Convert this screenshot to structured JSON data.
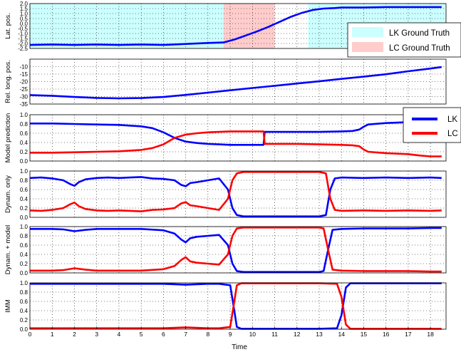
{
  "chart_data": {
    "type": "line",
    "xlabel": "Time",
    "xlim": [
      0,
      18.7
    ],
    "xticks": [
      0,
      1,
      2,
      3,
      4,
      5,
      6,
      7,
      8,
      9,
      10,
      11,
      12,
      13,
      14,
      15,
      16,
      17,
      18
    ],
    "colors": {
      "LK": "#0000ff",
      "LC": "#ff0000",
      "lk_region": "#ccffff",
      "lc_region": "#ffcccc"
    },
    "legend_regions": {
      "position": "top-right",
      "entries": [
        "LK Ground Truth",
        "LC Ground Truth"
      ]
    },
    "legend_lines": {
      "position": "top-right",
      "entries": [
        "LK",
        "LC"
      ]
    },
    "panels": [
      {
        "ylabel": "Lat. pos.",
        "ylim": [
          -2.5,
          2.0
        ],
        "yticks": [
          "2.0",
          "1.5",
          "1.0",
          "0.5",
          "0.0",
          "-0.5",
          "-1.0",
          "-1.5",
          "-2.0",
          "-2.5"
        ],
        "regions": [
          {
            "label": "LK Ground Truth",
            "x": [
              0,
              8.7
            ]
          },
          {
            "label": "LC Ground Truth",
            "x": [
              8.7,
              11.0
            ]
          },
          {
            "label": "LK Ground Truth",
            "x": [
              12.5,
              18.7
            ]
          }
        ],
        "series": [
          {
            "x": [
              0,
              1,
              2,
              3,
              4,
              5,
              6,
              7,
              8,
              8.7,
              9.2,
              9.7,
              10.2,
              10.7,
              11.2,
              11.7,
              12.2,
              12.7,
              13.2,
              13.7,
              14,
              15,
              16,
              17,
              18,
              18.5
            ],
            "y": [
              -2.15,
              -2.1,
              -2.15,
              -2.1,
              -2.15,
              -2.1,
              -2.15,
              -2.05,
              -1.95,
              -1.9,
              -1.6,
              -1.2,
              -0.8,
              -0.35,
              0.15,
              0.65,
              1.05,
              1.35,
              1.5,
              1.55,
              1.6,
              1.6,
              1.65,
              1.65,
              1.65,
              1.65
            ]
          }
        ]
      },
      {
        "ylabel": "Rel. long. pos.",
        "ylim": [
          -35,
          -5
        ],
        "yticks": [
          "-10",
          "-15",
          "-20",
          "-25",
          "-30",
          "-35"
        ],
        "series": [
          {
            "x": [
              0,
              1,
              2,
              3,
              4,
              5,
              6,
              7,
              8,
              9,
              10,
              11,
              12,
              13,
              14,
              15,
              16,
              17,
              18,
              18.5
            ],
            "y": [
              -29,
              -29.5,
              -30.3,
              -30.9,
              -31.2,
              -31,
              -30.3,
              -28.9,
              -27.4,
              -25.8,
              -24.3,
              -22.8,
              -21.3,
              -19.8,
              -18.2,
              -16.7,
              -15.1,
              -13.1,
              -11.3,
              -10.3
            ]
          }
        ]
      },
      {
        "ylabel": "Model prediction",
        "ylim": [
          0,
          1
        ],
        "yticks": [
          "1.0",
          "0.8",
          "0.6",
          "0.4",
          "0.2",
          "0.0"
        ],
        "series": [
          {
            "name": "LK",
            "x": [
              0,
              1,
              2,
              3,
              4,
              5,
              5.5,
              6,
              6.5,
              7,
              7.5,
              8,
              8.5,
              9,
              9.5,
              10,
              10.5,
              10.55,
              11,
              12,
              13,
              14,
              14.5,
              14.8,
              15,
              15.2,
              16,
              17,
              18,
              18.5
            ],
            "y": [
              0.81,
              0.81,
              0.8,
              0.79,
              0.78,
              0.75,
              0.71,
              0.62,
              0.5,
              0.42,
              0.39,
              0.37,
              0.36,
              0.35,
              0.35,
              0.35,
              0.35,
              0.63,
              0.63,
              0.63,
              0.63,
              0.64,
              0.65,
              0.68,
              0.74,
              0.79,
              0.82,
              0.84,
              0.9,
              0.9
            ]
          },
          {
            "name": "LC",
            "x": [
              0,
              1,
              2,
              3,
              4,
              5,
              5.5,
              6,
              6.5,
              7,
              7.5,
              8,
              8.5,
              9,
              9.5,
              10,
              10.5,
              10.55,
              11,
              12,
              13,
              14,
              14.5,
              14.8,
              15,
              15.2,
              16,
              17,
              17.5,
              18,
              18.5
            ],
            "y": [
              0.18,
              0.18,
              0.19,
              0.2,
              0.21,
              0.24,
              0.28,
              0.36,
              0.5,
              0.57,
              0.6,
              0.62,
              0.63,
              0.64,
              0.64,
              0.64,
              0.64,
              0.37,
              0.37,
              0.37,
              0.36,
              0.35,
              0.34,
              0.32,
              0.25,
              0.2,
              0.17,
              0.15,
              0.12,
              0.1,
              0.1
            ]
          }
        ]
      },
      {
        "ylabel": "Dynam. only",
        "ylim": [
          0,
          1
        ],
        "yticks": [
          "1.0",
          "0.8",
          "0.6",
          "0.4",
          "0.2",
          "0.0"
        ],
        "series": [
          {
            "name": "LK",
            "x": [
              0,
              0.5,
              1,
              1.5,
              1.8,
              2,
              2.2,
              2.5,
              3,
              3.5,
              4,
              4.5,
              5,
              5.5,
              6,
              6.5,
              6.8,
              7,
              7.2,
              7.5,
              8,
              8.5,
              8.9,
              9.1,
              9.3,
              9.6,
              10,
              11,
              12,
              13,
              13.3,
              13.5,
              13.7,
              14,
              15,
              16,
              17,
              18,
              18.5
            ],
            "y": [
              0.85,
              0.86,
              0.84,
              0.8,
              0.72,
              0.68,
              0.76,
              0.82,
              0.85,
              0.86,
              0.85,
              0.86,
              0.87,
              0.84,
              0.83,
              0.8,
              0.7,
              0.67,
              0.74,
              0.76,
              0.8,
              0.84,
              0.6,
              0.2,
              0.05,
              0.02,
              0.02,
              0.02,
              0.02,
              0.02,
              0.05,
              0.6,
              0.84,
              0.86,
              0.85,
              0.86,
              0.85,
              0.86,
              0.85
            ]
          },
          {
            "name": "LC",
            "x": [
              0,
              0.5,
              1,
              1.5,
              1.8,
              2,
              2.2,
              2.5,
              3,
              3.5,
              4,
              4.5,
              5,
              5.5,
              6,
              6.5,
              6.8,
              7,
              7.2,
              7.5,
              8,
              8.5,
              8.9,
              9.1,
              9.3,
              9.6,
              10,
              11,
              12,
              13,
              13.3,
              13.5,
              13.7,
              14,
              15,
              16,
              17,
              18,
              18.5
            ],
            "y": [
              0.15,
              0.14,
              0.16,
              0.2,
              0.28,
              0.32,
              0.24,
              0.18,
              0.15,
              0.14,
              0.15,
              0.14,
              0.13,
              0.16,
              0.17,
              0.2,
              0.3,
              0.33,
              0.26,
              0.24,
              0.2,
              0.16,
              0.4,
              0.8,
              0.95,
              0.98,
              0.98,
              0.98,
              0.98,
              0.98,
              0.95,
              0.4,
              0.16,
              0.14,
              0.15,
              0.14,
              0.15,
              0.14,
              0.15
            ]
          }
        ]
      },
      {
        "ylabel": "Dynam. + model",
        "ylim": [
          0,
          1
        ],
        "yticks": [
          "1.0",
          "0.8",
          "0.6",
          "0.4",
          "0.2",
          "0.0"
        ],
        "series": [
          {
            "name": "LK",
            "x": [
              0,
              1,
              1.5,
              2,
              2.5,
              3,
              4,
              5,
              6,
              6.5,
              6.8,
              7,
              7.2,
              7.5,
              8,
              8.5,
              8.9,
              9.1,
              9.3,
              9.6,
              10,
              11,
              12,
              13,
              13.2,
              13.4,
              13.6,
              14,
              15,
              16,
              17,
              18,
              18.5
            ],
            "y": [
              0.95,
              0.95,
              0.94,
              0.9,
              0.93,
              0.95,
              0.95,
              0.95,
              0.92,
              0.85,
              0.72,
              0.66,
              0.75,
              0.78,
              0.8,
              0.82,
              0.6,
              0.2,
              0.04,
              0.02,
              0.02,
              0.02,
              0.02,
              0.02,
              0.04,
              0.5,
              0.93,
              0.95,
              0.96,
              0.96,
              0.96,
              0.97,
              0.97
            ]
          },
          {
            "name": "LC",
            "x": [
              0,
              1,
              1.5,
              2,
              2.5,
              3,
              4,
              5,
              6,
              6.5,
              6.8,
              7,
              7.2,
              7.5,
              8,
              8.5,
              8.9,
              9.1,
              9.3,
              9.6,
              10,
              11,
              12,
              13,
              13.2,
              13.4,
              13.6,
              14,
              15,
              16,
              17,
              18,
              18.5
            ],
            "y": [
              0.05,
              0.05,
              0.06,
              0.1,
              0.07,
              0.05,
              0.05,
              0.05,
              0.08,
              0.15,
              0.28,
              0.34,
              0.25,
              0.22,
              0.2,
              0.18,
              0.4,
              0.8,
              0.96,
              0.98,
              0.98,
              0.98,
              0.98,
              0.98,
              0.96,
              0.5,
              0.07,
              0.05,
              0.04,
              0.04,
              0.04,
              0.03,
              0.03
            ]
          }
        ]
      },
      {
        "ylabel": "IMM",
        "ylim": [
          0,
          1
        ],
        "yticks": [
          "1.0",
          "0.8",
          "0.6",
          "0.4",
          "0.2",
          "0.0"
        ],
        "series": [
          {
            "name": "LK",
            "x": [
              0,
              1,
              2,
              3,
              4,
              5,
              6,
              6.5,
              7,
              7.5,
              8,
              8.5,
              9,
              9.15,
              9.3,
              9.5,
              10,
              11,
              12,
              13,
              13.8,
              14,
              14.2,
              14.4,
              15,
              16,
              17,
              18,
              18.5
            ],
            "y": [
              0.98,
              0.98,
              0.98,
              0.98,
              0.98,
              0.98,
              0.98,
              0.97,
              0.96,
              0.97,
              0.98,
              0.98,
              0.95,
              0.5,
              0.05,
              0.01,
              0.01,
              0.01,
              0.01,
              0.01,
              0.02,
              0.3,
              0.9,
              0.99,
              0.99,
              0.99,
              0.99,
              0.99,
              0.99
            ]
          },
          {
            "name": "LC",
            "x": [
              0,
              1,
              2,
              3,
              4,
              5,
              6,
              6.5,
              7,
              7.5,
              8,
              8.5,
              9,
              9.15,
              9.3,
              9.5,
              10,
              11,
              12,
              13,
              13.8,
              14,
              14.2,
              14.4,
              15,
              16,
              17,
              18,
              18.5
            ],
            "y": [
              0.02,
              0.02,
              0.02,
              0.02,
              0.02,
              0.02,
              0.02,
              0.03,
              0.04,
              0.03,
              0.02,
              0.02,
              0.05,
              0.5,
              0.95,
              0.99,
              0.99,
              0.99,
              0.99,
              0.99,
              0.98,
              0.7,
              0.1,
              0.01,
              0.01,
              0.01,
              0.01,
              0.01,
              0.01
            ]
          }
        ]
      }
    ]
  }
}
